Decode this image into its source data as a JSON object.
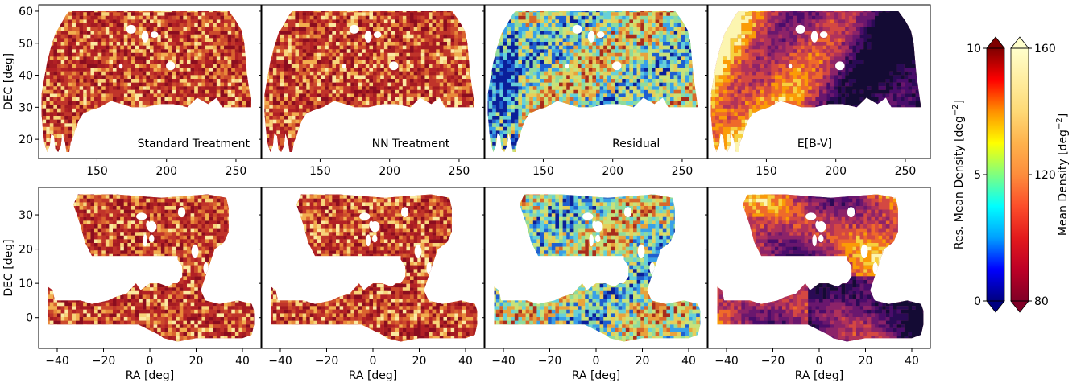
{
  "chart_data": [
    {
      "type": "heatmap",
      "row": "top",
      "column": "Standard Treatment",
      "panel_label": "Standard Treatment",
      "colormap": "mean_density",
      "xlabel": "",
      "ylabel": "DEC [deg]",
      "xlim": [
        108,
        268
      ],
      "ylim": [
        14,
        62
      ],
      "xticks": [
        150,
        200,
        250
      ],
      "yticks": [
        20,
        30,
        40,
        50,
        60
      ]
    },
    {
      "type": "heatmap",
      "row": "top",
      "column": "NN Treatment",
      "panel_label": "NN Treatment",
      "colormap": "mean_density",
      "xlabel": "",
      "ylabel": "",
      "xlim": [
        108,
        268
      ],
      "ylim": [
        14,
        62
      ],
      "xticks": [
        150,
        200,
        250
      ],
      "yticks": [
        20,
        30,
        40,
        50,
        60
      ]
    },
    {
      "type": "heatmap",
      "row": "top",
      "column": "Residual",
      "panel_label": "Residual",
      "colormap": "residual",
      "xlabel": "",
      "ylabel": "",
      "xlim": [
        108,
        268
      ],
      "ylim": [
        14,
        62
      ],
      "xticks": [
        150,
        200,
        250
      ],
      "yticks": [
        20,
        30,
        40,
        50,
        60
      ]
    },
    {
      "type": "heatmap",
      "row": "top",
      "column": "E[B-V]",
      "panel_label": "E[B-V]",
      "colormap": "ebv",
      "xlabel": "",
      "ylabel": "",
      "xlim": [
        108,
        268
      ],
      "ylim": [
        14,
        62
      ],
      "xticks": [
        150,
        200,
        250
      ],
      "yticks": [
        20,
        30,
        40,
        50,
        60
      ]
    },
    {
      "type": "heatmap",
      "row": "bottom",
      "column": "Standard Treatment",
      "panel_label": "",
      "colormap": "mean_density",
      "xlabel": "RA [deg]",
      "ylabel": "DEC [deg]",
      "xlim": [
        -48,
        48
      ],
      "ylim": [
        -9,
        38
      ],
      "xticks": [
        -40,
        -20,
        0,
        20,
        40
      ],
      "yticks": [
        0,
        10,
        20,
        30
      ]
    },
    {
      "type": "heatmap",
      "row": "bottom",
      "column": "NN Treatment",
      "panel_label": "",
      "colormap": "mean_density",
      "xlabel": "RA [deg]",
      "ylabel": "",
      "xlim": [
        -48,
        48
      ],
      "ylim": [
        -9,
        38
      ],
      "xticks": [
        -40,
        -20,
        0,
        20,
        40
      ],
      "yticks": [
        0,
        10,
        20,
        30
      ]
    },
    {
      "type": "heatmap",
      "row": "bottom",
      "column": "Residual",
      "panel_label": "",
      "colormap": "residual",
      "xlabel": "RA [deg]",
      "ylabel": "",
      "xlim": [
        -48,
        48
      ],
      "ylim": [
        -9,
        38
      ],
      "xticks": [
        -40,
        -20,
        0,
        20,
        40
      ],
      "yticks": [
        0,
        10,
        20,
        30
      ]
    },
    {
      "type": "heatmap",
      "row": "bottom",
      "column": "E[B-V]",
      "panel_label": "",
      "colormap": "ebv",
      "xlabel": "RA [deg]",
      "ylabel": "",
      "xlim": [
        -48,
        48
      ],
      "ylim": [
        -9,
        38
      ],
      "xticks": [
        -40,
        -20,
        0,
        20,
        40
      ],
      "yticks": [
        0,
        10,
        20,
        30
      ]
    }
  ],
  "colorbars": [
    {
      "label": "Res. Mean Density [deg$^{-2}$]",
      "label_text": "Res. Mean Density [deg",
      "label_sup": "−2",
      "label_close": "]",
      "ticks": [
        0,
        5,
        10
      ],
      "range": [
        0,
        10
      ],
      "ticks_side": "left",
      "extend": "both",
      "colormap": "jet",
      "colors": [
        "#00007f",
        "#0000ff",
        "#00a0ff",
        "#00ffff",
        "#7fff7f",
        "#ffff00",
        "#ff9000",
        "#ff0000",
        "#7f0000"
      ]
    },
    {
      "label": "Mean Density [deg$^{-2}$]",
      "label_text": "Mean Density [deg",
      "label_sup": "−2",
      "label_close": "]",
      "ticks": [
        80,
        120,
        160
      ],
      "range": [
        80,
        160
      ],
      "ticks_side": "right",
      "extend": "both",
      "colormap": "YlOrRd_r",
      "colors": [
        "#800026",
        "#bd0026",
        "#e31a1c",
        "#fc4e2a",
        "#fd8d3c",
        "#feb24c",
        "#fed976",
        "#ffeda0",
        "#ffffcc"
      ]
    }
  ],
  "palettes": {
    "mean_density": [
      "#8b0d1f",
      "#a51b22",
      "#b22025",
      "#c0342a",
      "#cc4a2c",
      "#d9632f",
      "#e8883a",
      "#f2ad4f",
      "#f7d47a",
      "#fbe9a0"
    ],
    "residual": [
      "#0a1f9a",
      "#1f5fd0",
      "#38a0e8",
      "#66d0d8",
      "#8fdb9c",
      "#c8e27a",
      "#e6cf5a",
      "#e8a23c",
      "#d8682a",
      "#a82c1c"
    ],
    "ebv": [
      "#140b34",
      "#2a0a55",
      "#4a0c6b",
      "#6a176e",
      "#8c2369",
      "#b0325a",
      "#d44842",
      "#ef6a2a",
      "#fb9b06",
      "#f7d03c",
      "#fcf5b0"
    ]
  }
}
